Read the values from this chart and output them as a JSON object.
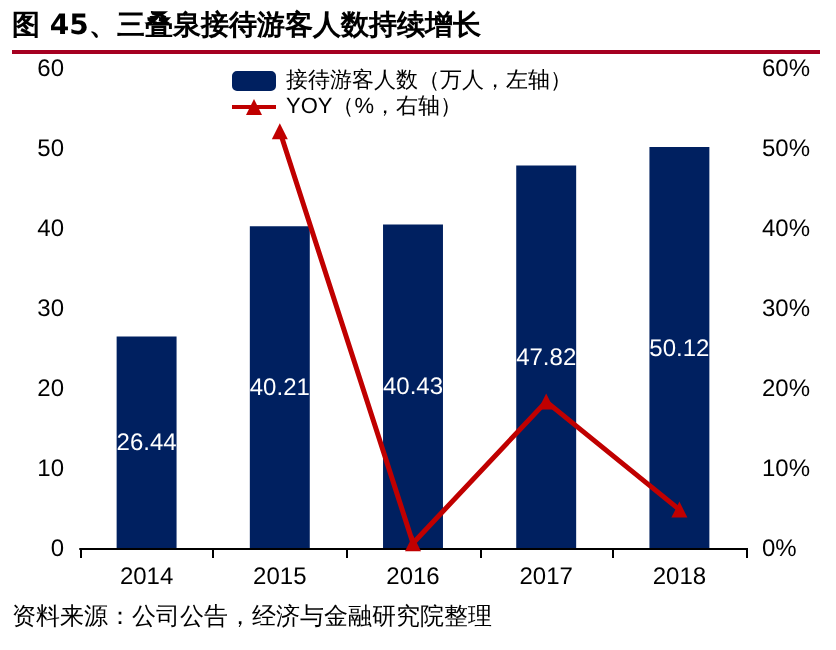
{
  "chart_data": {
    "type": "bar",
    "title": "图 45、三叠泉接待游客人数持续增长",
    "categories": [
      "2014",
      "2015",
      "2016",
      "2017",
      "2018"
    ],
    "series": [
      {
        "name": "接待游客人数（万人，左轴）",
        "color": "#002060",
        "values": [
          26.44,
          40.21,
          40.43,
          47.82,
          50.12
        ],
        "data_labels": true
      },
      {
        "name": "YOY（%，右轴）",
        "type": "line",
        "axis": "y2",
        "color": "#c00000",
        "marker": "triangle",
        "values": [
          null,
          52.1,
          0.6,
          18.3,
          4.8
        ]
      }
    ],
    "ylim": [
      0,
      60
    ],
    "yticks": [
      0,
      10,
      20,
      30,
      40,
      50,
      60
    ],
    "y2lim": [
      0,
      60
    ],
    "y2ticks": [
      {
        "value": 0,
        "label": "0%"
      },
      {
        "value": 10,
        "label": "10%"
      },
      {
        "value": 20,
        "label": "20%"
      },
      {
        "value": 30,
        "label": "30%"
      },
      {
        "value": 40,
        "label": "40%"
      },
      {
        "value": 50,
        "label": "50%"
      },
      {
        "value": 60,
        "label": "60%"
      }
    ],
    "legend": "top",
    "grid": false,
    "annotations": [
      "资料来源：公司公告，经济与金融研究院整理"
    ]
  }
}
